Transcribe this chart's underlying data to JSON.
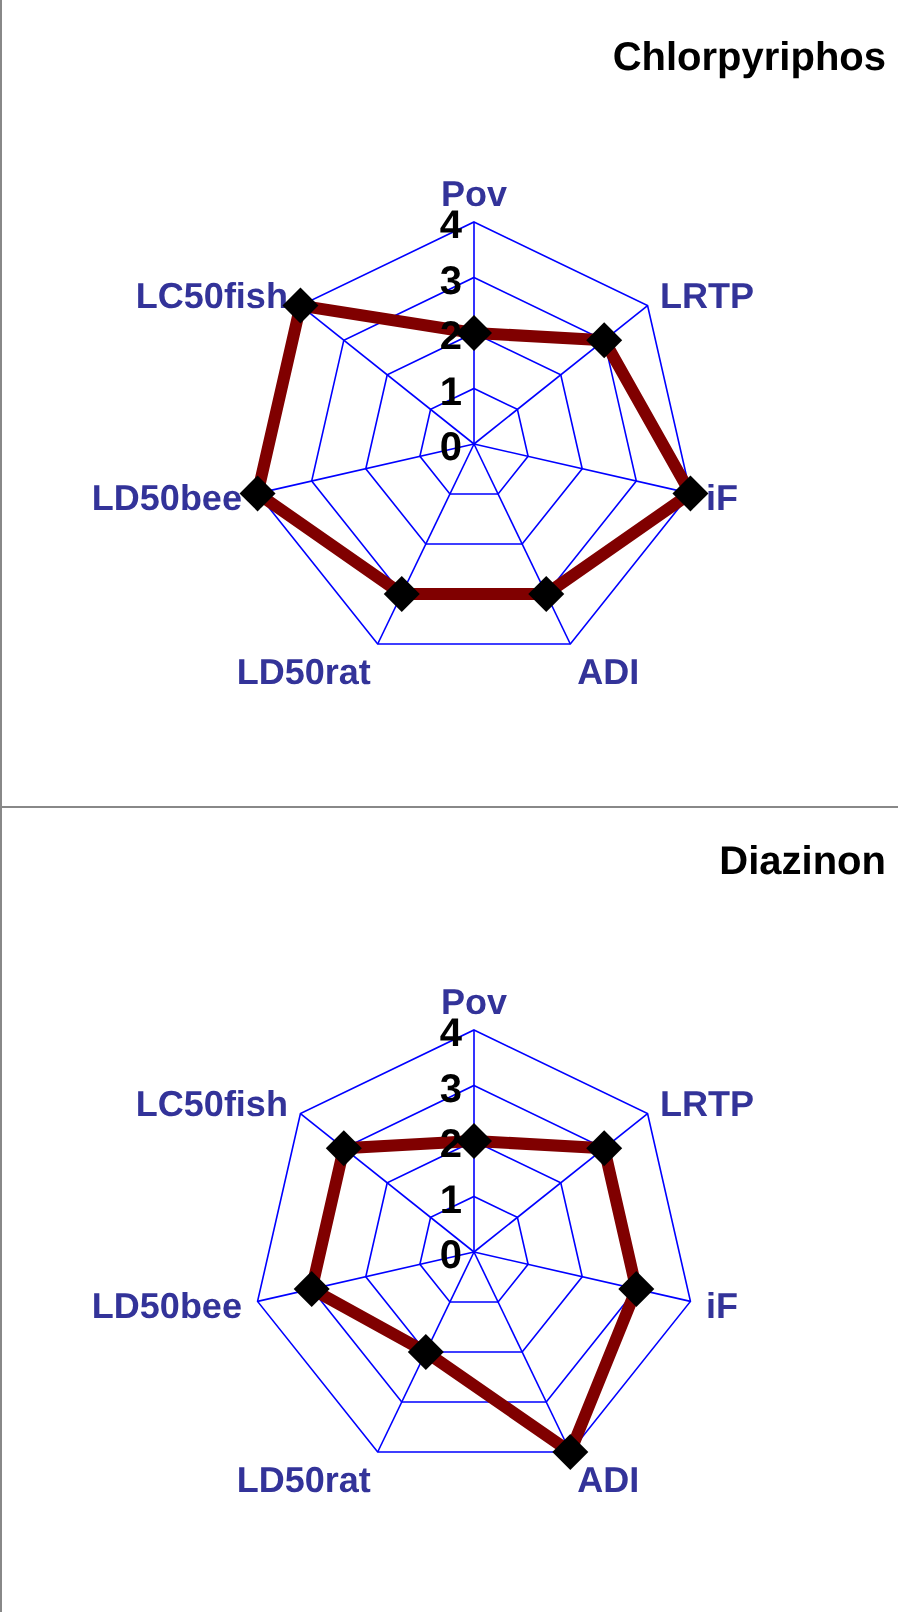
{
  "chart_data": [
    {
      "type": "radar",
      "title": "Chlorpyriphos",
      "categories": [
        "Pov",
        "LRTP",
        "iF",
        "ADI",
        "LD50rat",
        "LD50bee",
        "LC50fish"
      ],
      "series": [
        {
          "color": "#800000",
          "values": [
            2,
            3,
            4,
            3,
            3,
            4,
            4
          ]
        }
      ],
      "ylim": [
        0,
        4
      ],
      "yticks": [
        0,
        1,
        2,
        3,
        4
      ],
      "grid": true,
      "marker": "diamond"
    },
    {
      "type": "radar",
      "title": "Diazinon",
      "categories": [
        "Pov",
        "LRTP",
        "iF",
        "ADI",
        "LD50rat",
        "LD50bee",
        "LC50fish"
      ],
      "series": [
        {
          "color": "#800000",
          "values": [
            2,
            3,
            3,
            4,
            2,
            3,
            3
          ]
        }
      ],
      "ylim": [
        0,
        4
      ],
      "yticks": [
        0,
        1,
        2,
        3,
        4
      ],
      "grid": true,
      "marker": "diamond"
    }
  ]
}
